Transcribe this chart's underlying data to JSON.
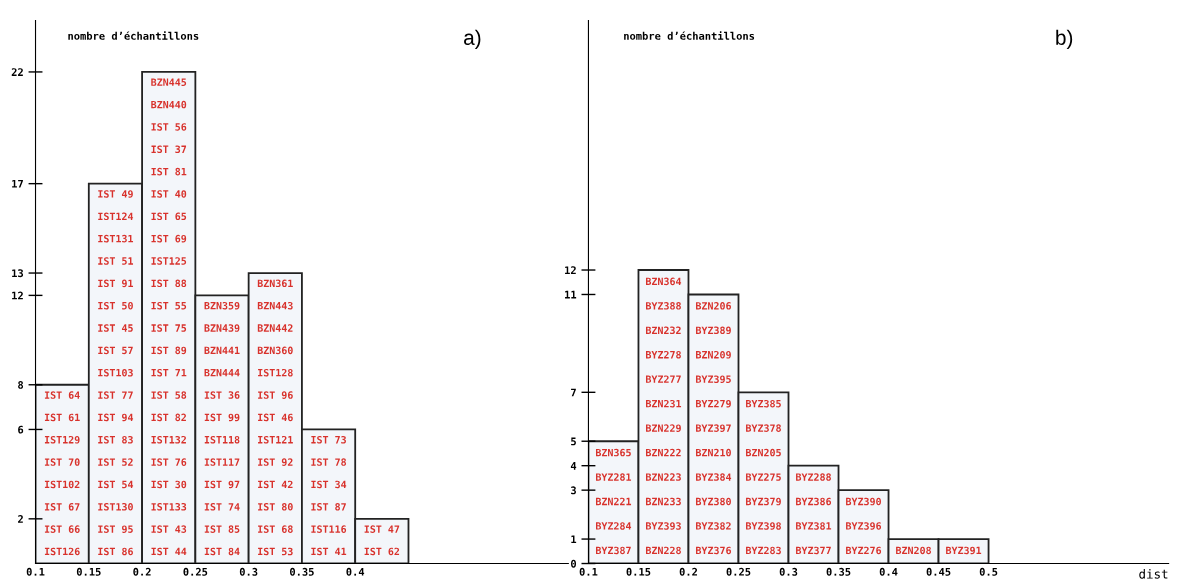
{
  "chart_data": [
    {
      "type": "histogram",
      "title": "a)",
      "ylabel": "nombre d’échantillons",
      "color": "#f3f6fa",
      "bins": [
        0.1,
        0.15,
        0.2,
        0.25,
        0.3,
        0.35,
        0.4,
        0.45
      ],
      "values": [
        8,
        17,
        22,
        12,
        13,
        6,
        2
      ],
      "xlim": [
        0.1,
        0.6
      ],
      "ylim": [
        0,
        24.3
      ],
      "xticks": [
        0.1,
        0.15,
        0.2,
        0.25,
        0.3,
        0.35,
        0.4
      ],
      "yticks": [
        2,
        6,
        8,
        12,
        13,
        17,
        22
      ],
      "grid": false,
      "legend": false,
      "annotations": [
        "IST126",
        "IST 66",
        "IST 67",
        "IST102",
        "IST 70",
        "IST129",
        "IST 61",
        "IST 64",
        "IST 86",
        "IST 95",
        "IST130",
        "IST 54",
        "IST 52",
        "IST 83",
        "IST 94",
        "IST 77",
        "IST103",
        "IST 57",
        "IST 45",
        "IST 50",
        "IST 91",
        "IST 51",
        "IST131",
        "IST124",
        "IST 49",
        "IST 44",
        "IST 43",
        "IST133",
        "IST 30",
        "IST 76",
        "IST132",
        "IST 82",
        "IST 58",
        "IST 71",
        "IST 89",
        "IST 75",
        "IST 55",
        "IST 88",
        "IST125",
        "IST 69",
        "IST 65",
        "IST 40",
        "IST 81",
        "IST 37",
        "IST 56",
        "BZN440",
        "BZN445",
        "IST 84",
        "IST 85",
        "IST 74",
        "IST 97",
        "IST117",
        "IST118",
        "IST 99",
        "IST 36",
        "BZN444",
        "BZN441",
        "BZN439",
        "BZN359",
        "IST 53",
        "IST 68",
        "IST 80",
        "IST 42",
        "IST 92",
        "IST121",
        "IST 46",
        "IST 96",
        "IST128",
        "BZN360",
        "BZN442",
        "BZN443",
        "BZN361",
        "IST 41",
        "IST116",
        "IST 87",
        "IST 34",
        "IST 78",
        "IST 73",
        "IST 62",
        "IST 47"
      ]
    },
    {
      "type": "histogram",
      "title": "b)",
      "ylabel": "nombre d’échantillons",
      "xlabel": "dist",
      "color": "#f3f6fa",
      "bins": [
        0.1,
        0.15,
        0.2,
        0.25,
        0.3,
        0.35,
        0.4,
        0.45,
        0.5
      ],
      "values": [
        5,
        12,
        11,
        7,
        4,
        3,
        1,
        1
      ],
      "xlim": [
        0.1,
        0.68
      ],
      "ylim": [
        0,
        22.2
      ],
      "xticks": [
        0.1,
        0.15,
        0.2,
        0.25,
        0.3,
        0.35,
        0.4,
        0.45,
        0.5
      ],
      "yticks": [
        0,
        1,
        3,
        4,
        5,
        7,
        11,
        12
      ],
      "grid": false,
      "legend": false,
      "annotations": [
        "BYZ387",
        "BYZ284",
        "BZN221",
        "BYZ281",
        "BZN365",
        "BZN228",
        "BYZ393",
        "BZN233",
        "BZN223",
        "BZN222",
        "BZN229",
        "BZN231",
        "BYZ277",
        "BYZ278",
        "BZN232",
        "BYZ388",
        "BZN364",
        "BYZ376",
        "BYZ382",
        "BYZ380",
        "BYZ384",
        "BZN210",
        "BYZ397",
        "BYZ279",
        "BYZ395",
        "BZN209",
        "BYZ389",
        "BZN206",
        "BYZ283",
        "BYZ398",
        "BYZ379",
        "BYZ275",
        "BZN205",
        "BYZ378",
        "BYZ385",
        "BYZ377",
        "BYZ381",
        "BYZ386",
        "BYZ288",
        "BYZ276",
        "BYZ396",
        "BYZ390",
        "BZN208",
        "BYZ391"
      ]
    }
  ]
}
